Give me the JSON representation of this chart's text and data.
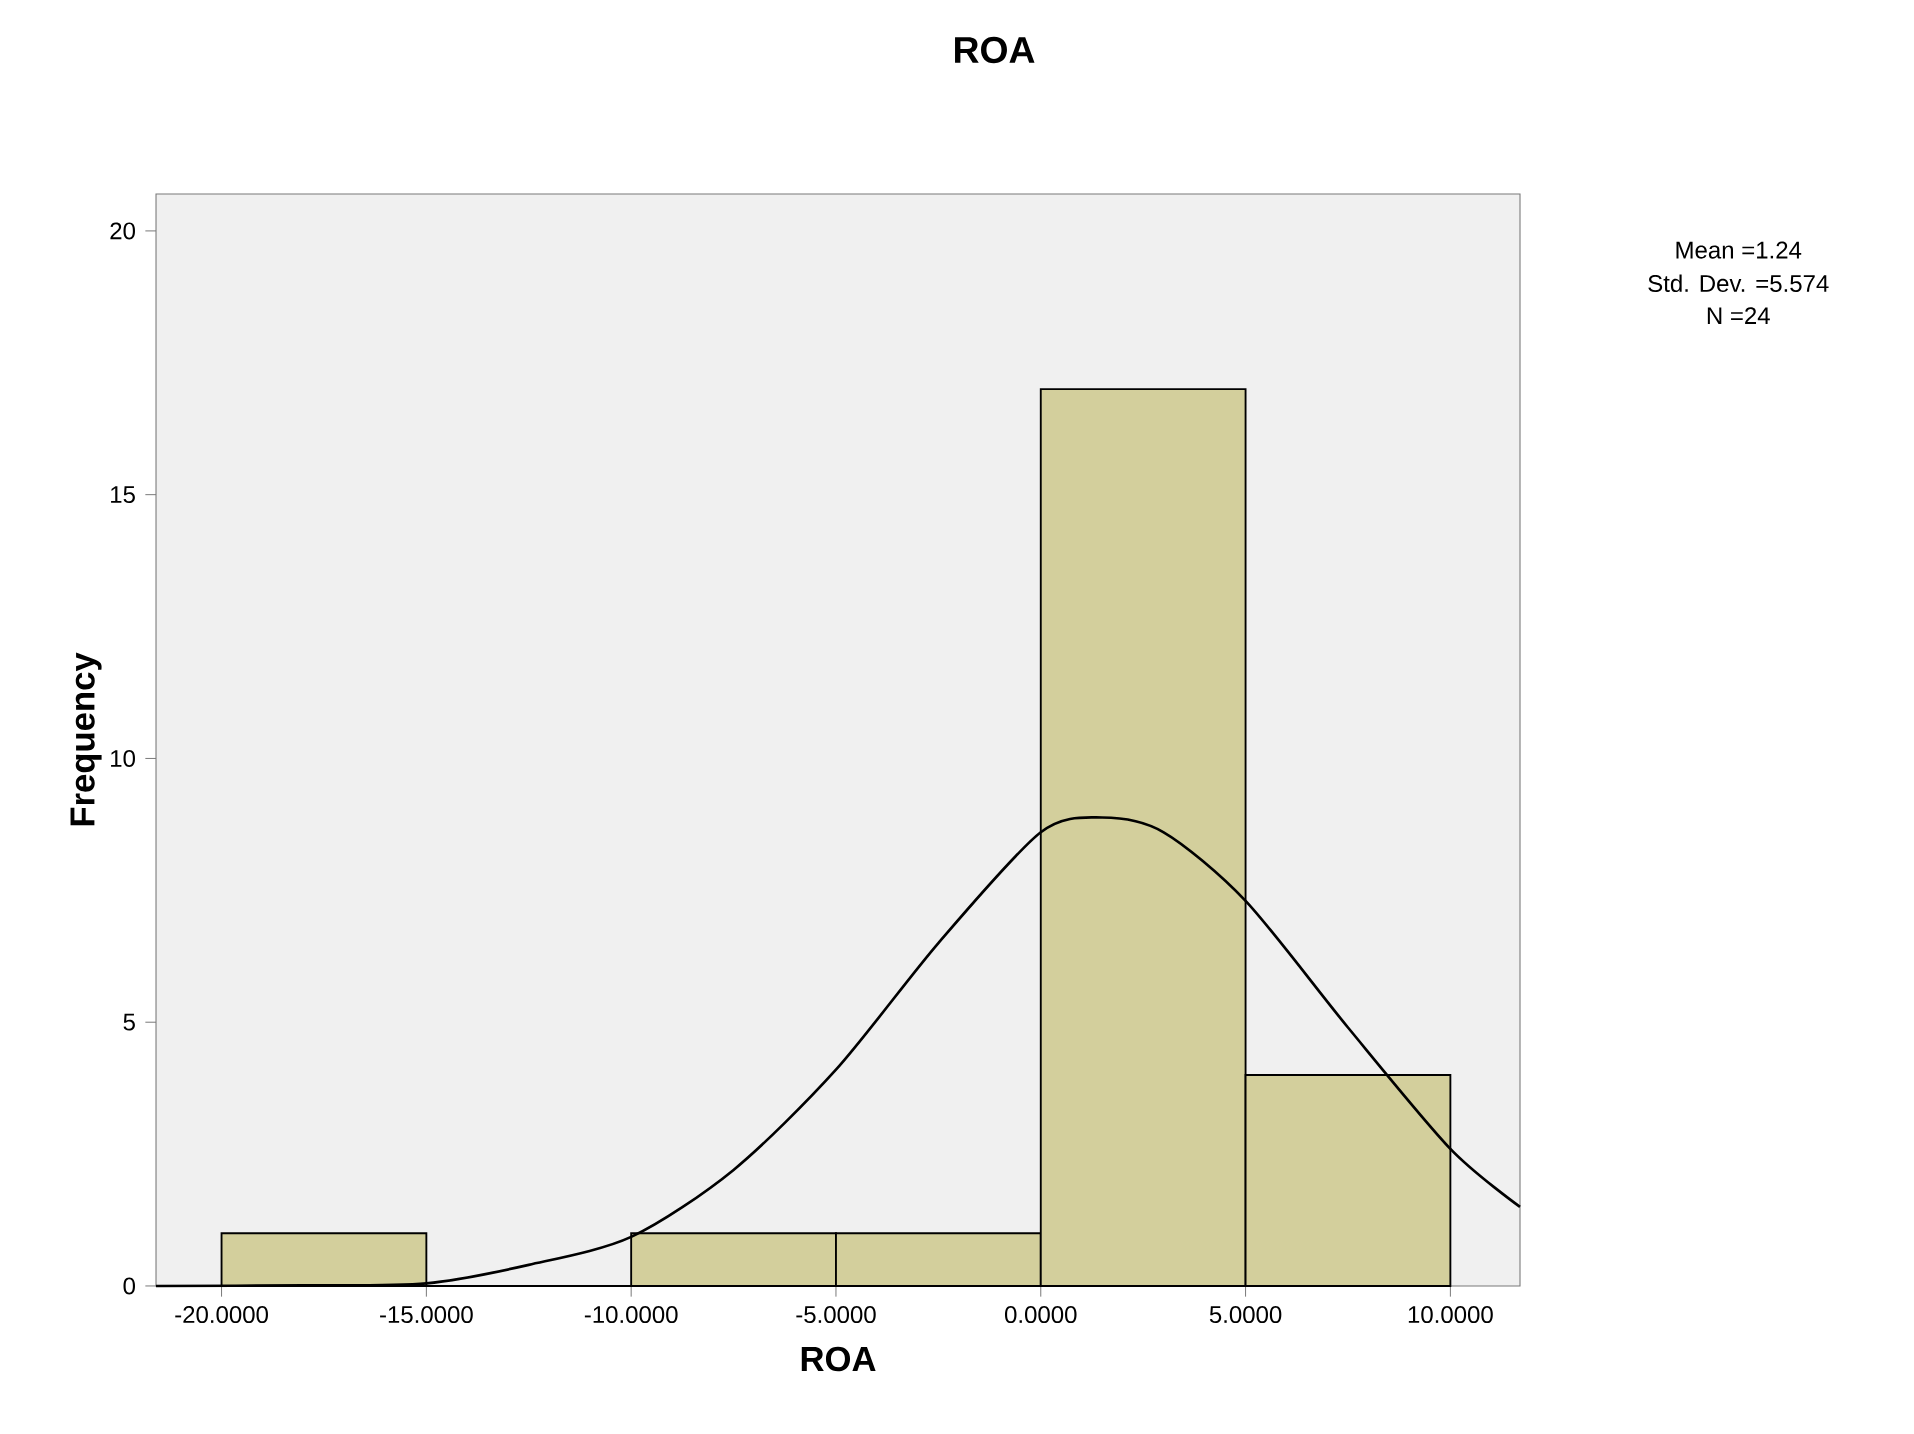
{
  "chart_data": {
    "type": "histogram",
    "title": "ROA",
    "xlabel": "ROA",
    "ylabel": "Frequency",
    "annotations": [
      "Mean =1.24",
      "Std. Dev. =5.574",
      "N =24"
    ],
    "bins": [
      -20,
      -15,
      -10,
      -5,
      0,
      5,
      10
    ],
    "values": [
      1,
      0,
      1,
      1,
      17,
      4
    ],
    "color": "#d3cf9c",
    "series": [
      {
        "type": "line",
        "color": "#000000",
        "x": [
          -21.6,
          -18,
          -15,
          -12.5,
          -10,
          -7.5,
          -5,
          -2.5,
          0,
          1.5,
          3,
          5,
          7.5,
          10,
          11.7
        ],
        "values": [
          0.0,
          0.01,
          0.05,
          0.4,
          0.93,
          2.2,
          4.1,
          6.5,
          8.6,
          8.88,
          8.6,
          7.3,
          4.9,
          2.6,
          1.5
        ]
      }
    ],
    "xlim": [
      -21.6,
      11.7
    ],
    "ylim": [
      0,
      20.7
    ],
    "xticks": [
      {
        "value": -20,
        "label": "-20.0000"
      },
      {
        "value": -15,
        "label": "-15.0000"
      },
      {
        "value": -10,
        "label": "-10.0000"
      },
      {
        "value": -5,
        "label": "-5.0000"
      },
      {
        "value": 0,
        "label": "0.0000"
      },
      {
        "value": 5,
        "label": "5.0000"
      },
      {
        "value": 10,
        "label": "10.0000"
      }
    ],
    "yticks": [
      0,
      5,
      10,
      15,
      20
    ],
    "grid": false
  }
}
